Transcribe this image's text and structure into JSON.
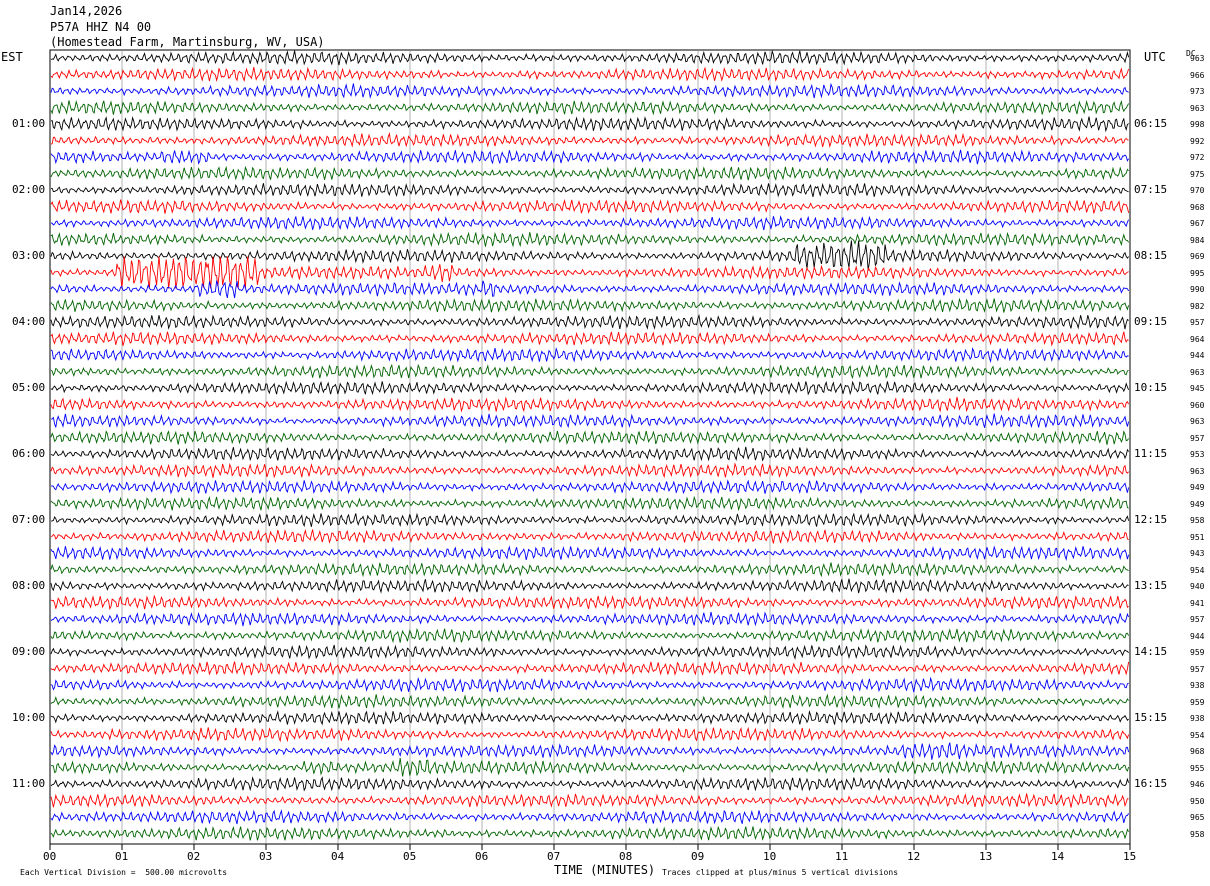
{
  "header": {
    "date": "Jan14,2026",
    "station": "P57A HHZ N4 00",
    "location": "(Homestead Farm, Martinsburg, WV, USA)"
  },
  "left_label": "EST",
  "right_label": "UTC",
  "dc_label": "DC",
  "footer": {
    "left": "Each Vertical Division =  500.00 microvolts",
    "center": "TIME (MINUTES)",
    "right": "Traces clipped at plus/minus 5 vertical divisions"
  },
  "colors": {
    "cycle": [
      "#000000",
      "#ff0000",
      "#0000ff",
      "#006400"
    ],
    "grid": "#808080"
  },
  "chart_data": {
    "type": "line",
    "title": "P57A HHZ N4 00",
    "xlabel": "TIME (MINUTES)",
    "xlim": [
      0,
      15
    ],
    "x_ticks": [
      "00",
      "01",
      "02",
      "03",
      "04",
      "05",
      "06",
      "07",
      "08",
      "09",
      "10",
      "11",
      "12",
      "13",
      "14",
      "15"
    ],
    "left_hour_labels": [
      "01:00",
      "02:00",
      "03:00",
      "04:00",
      "05:00",
      "06:00",
      "07:00",
      "08:00",
      "09:00",
      "10:00",
      "11:00"
    ],
    "right_hour_labels": [
      "06:15",
      "07:15",
      "08:15",
      "09:15",
      "10:15",
      "11:15",
      "12:15",
      "13:15",
      "14:15",
      "15:15",
      "16:15"
    ],
    "trace_dc_values": [
      963,
      966,
      973,
      963,
      998,
      992,
      972,
      975,
      970,
      968,
      967,
      984,
      969,
      995,
      990,
      982,
      957,
      964,
      944,
      963,
      945,
      960,
      963,
      957,
      953,
      963,
      949,
      949,
      958,
      951,
      943,
      954,
      940,
      941,
      957,
      944,
      959,
      957,
      938,
      959,
      938,
      954,
      968,
      955,
      946,
      950,
      965,
      958
    ],
    "events": [
      {
        "trace": 12,
        "x0": 10.3,
        "x1": 11.6,
        "amp": 8
      },
      {
        "trace": 13,
        "x0": 0.9,
        "x1": 2.9,
        "amp": 14
      },
      {
        "trace": 13,
        "x0": 5.2,
        "x1": 5.6,
        "amp": 4
      },
      {
        "trace": 14,
        "x0": 6.0,
        "x1": 6.2,
        "amp": 4
      },
      {
        "trace": 14,
        "x0": 2.0,
        "x1": 2.6,
        "amp": 6
      },
      {
        "trace": 6,
        "x0": 1.5,
        "x1": 2.2,
        "amp": 4
      },
      {
        "trace": 42,
        "x0": 11.8,
        "x1": 12.7,
        "amp": 3
      },
      {
        "trace": 43,
        "x0": 4.8,
        "x1": 5.3,
        "amp": 4
      },
      {
        "trace": 43,
        "x0": 3.5,
        "x1": 4.0,
        "amp": 3
      }
    ]
  }
}
